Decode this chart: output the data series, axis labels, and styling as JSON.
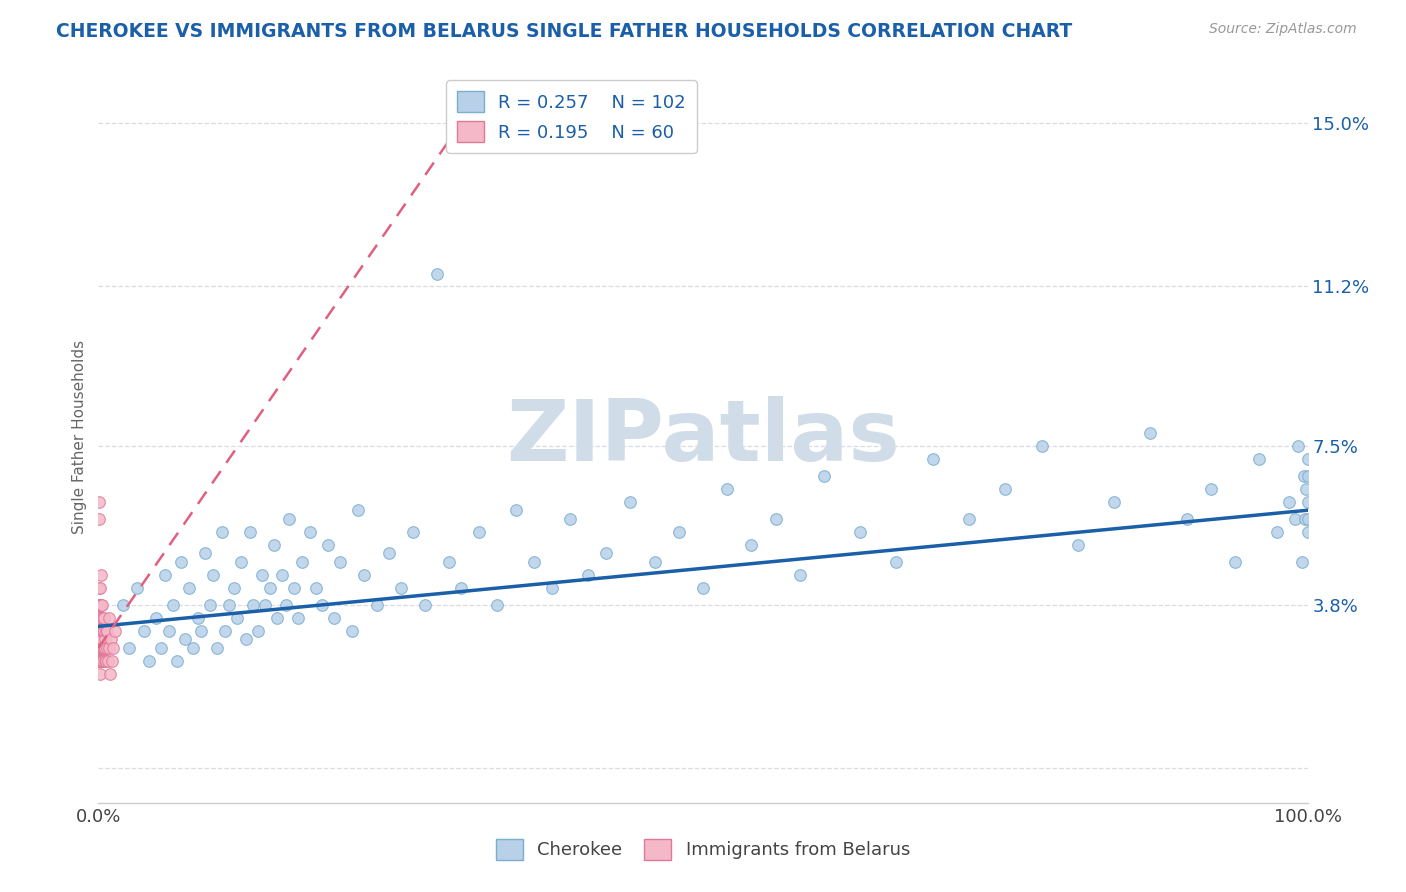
{
  "title": "CHEROKEE VS IMMIGRANTS FROM BELARUS SINGLE FATHER HOUSEHOLDS CORRELATION CHART",
  "source_text": "Source: ZipAtlas.com",
  "ylabel": "Single Father Households",
  "yticks": [
    0.0,
    0.038,
    0.075,
    0.112,
    0.15
  ],
  "ytick_labels": [
    "",
    "3.8%",
    "7.5%",
    "11.2%",
    "15.0%"
  ],
  "xmin": 0.0,
  "xmax": 1.0,
  "ymin": -0.008,
  "ymax": 0.162,
  "cherokee_R": 0.257,
  "cherokee_N": 102,
  "belarus_R": 0.195,
  "belarus_N": 60,
  "cherokee_dot_color": "#b8d0e8",
  "cherokee_edge_color": "#7aaed0",
  "belarus_dot_color": "#f5b8c8",
  "belarus_edge_color": "#e07898",
  "cherokee_line_color": "#1a5fa8",
  "belarus_line_color": "#e06080",
  "title_color": "#1a5fa8",
  "source_color": "#999999",
  "legend_text_color": "#1a5fa8",
  "watermark_color": "#d0dde8",
  "background_color": "#ffffff",
  "grid_color": "#d8dde4",
  "cherokee_x": [
    0.02,
    0.025,
    0.032,
    0.038,
    0.042,
    0.048,
    0.052,
    0.055,
    0.058,
    0.062,
    0.065,
    0.068,
    0.072,
    0.075,
    0.078,
    0.082,
    0.085,
    0.088,
    0.092,
    0.095,
    0.098,
    0.102,
    0.105,
    0.108,
    0.112,
    0.115,
    0.118,
    0.122,
    0.125,
    0.128,
    0.132,
    0.135,
    0.138,
    0.142,
    0.145,
    0.148,
    0.152,
    0.155,
    0.158,
    0.162,
    0.165,
    0.168,
    0.175,
    0.18,
    0.185,
    0.19,
    0.195,
    0.2,
    0.21,
    0.215,
    0.22,
    0.23,
    0.24,
    0.25,
    0.26,
    0.27,
    0.28,
    0.29,
    0.3,
    0.315,
    0.33,
    0.345,
    0.36,
    0.375,
    0.39,
    0.405,
    0.42,
    0.44,
    0.46,
    0.48,
    0.5,
    0.52,
    0.54,
    0.56,
    0.58,
    0.6,
    0.63,
    0.66,
    0.69,
    0.72,
    0.75,
    0.78,
    0.81,
    0.84,
    0.87,
    0.9,
    0.92,
    0.94,
    0.96,
    0.975,
    0.985,
    0.99,
    0.992,
    0.995,
    0.997,
    0.998,
    0.999,
    1.0,
    1.0,
    1.0,
    1.0,
    1.0
  ],
  "cherokee_y": [
    0.038,
    0.028,
    0.042,
    0.032,
    0.025,
    0.035,
    0.028,
    0.045,
    0.032,
    0.038,
    0.025,
    0.048,
    0.03,
    0.042,
    0.028,
    0.035,
    0.032,
    0.05,
    0.038,
    0.045,
    0.028,
    0.055,
    0.032,
    0.038,
    0.042,
    0.035,
    0.048,
    0.03,
    0.055,
    0.038,
    0.032,
    0.045,
    0.038,
    0.042,
    0.052,
    0.035,
    0.045,
    0.038,
    0.058,
    0.042,
    0.035,
    0.048,
    0.055,
    0.042,
    0.038,
    0.052,
    0.035,
    0.048,
    0.032,
    0.06,
    0.045,
    0.038,
    0.05,
    0.042,
    0.055,
    0.038,
    0.115,
    0.048,
    0.042,
    0.055,
    0.038,
    0.06,
    0.048,
    0.042,
    0.058,
    0.045,
    0.05,
    0.062,
    0.048,
    0.055,
    0.042,
    0.065,
    0.052,
    0.058,
    0.045,
    0.068,
    0.055,
    0.048,
    0.072,
    0.058,
    0.065,
    0.075,
    0.052,
    0.062,
    0.078,
    0.058,
    0.065,
    0.048,
    0.072,
    0.055,
    0.062,
    0.058,
    0.075,
    0.048,
    0.068,
    0.058,
    0.065,
    0.072,
    0.055,
    0.068,
    0.062,
    0.058
  ],
  "belarus_x": [
    0.0002,
    0.0003,
    0.0004,
    0.0004,
    0.0005,
    0.0005,
    0.0006,
    0.0006,
    0.0007,
    0.0008,
    0.0008,
    0.0009,
    0.001,
    0.001,
    0.0011,
    0.0012,
    0.0012,
    0.0013,
    0.0014,
    0.0015,
    0.0015,
    0.0016,
    0.0017,
    0.0018,
    0.0018,
    0.0019,
    0.002,
    0.0021,
    0.0022,
    0.0023,
    0.0024,
    0.0025,
    0.0026,
    0.0027,
    0.0028,
    0.003,
    0.0032,
    0.0034,
    0.0036,
    0.0038,
    0.004,
    0.0042,
    0.0045,
    0.0048,
    0.005,
    0.0052,
    0.0055,
    0.0058,
    0.006,
    0.0065,
    0.007,
    0.0075,
    0.008,
    0.0085,
    0.009,
    0.0095,
    0.01,
    0.011,
    0.012,
    0.014
  ],
  "belarus_y": [
    0.03,
    0.032,
    0.028,
    0.038,
    0.025,
    0.035,
    0.03,
    0.042,
    0.028,
    0.058,
    0.062,
    0.028,
    0.032,
    0.038,
    0.025,
    0.03,
    0.022,
    0.035,
    0.03,
    0.038,
    0.025,
    0.028,
    0.042,
    0.035,
    0.032,
    0.045,
    0.03,
    0.025,
    0.038,
    0.032,
    0.028,
    0.035,
    0.03,
    0.028,
    0.032,
    0.025,
    0.038,
    0.028,
    0.032,
    0.035,
    0.028,
    0.025,
    0.032,
    0.028,
    0.035,
    0.025,
    0.03,
    0.028,
    0.032,
    0.025,
    0.028,
    0.032,
    0.025,
    0.035,
    0.028,
    0.022,
    0.03,
    0.025,
    0.028,
    0.032
  ],
  "cherokee_trend_x": [
    0.0,
    1.0
  ],
  "cherokee_trend_y": [
    0.033,
    0.06
  ],
  "belarus_trend_x": [
    0.0,
    0.3
  ],
  "belarus_trend_y": [
    0.028,
    0.15
  ]
}
